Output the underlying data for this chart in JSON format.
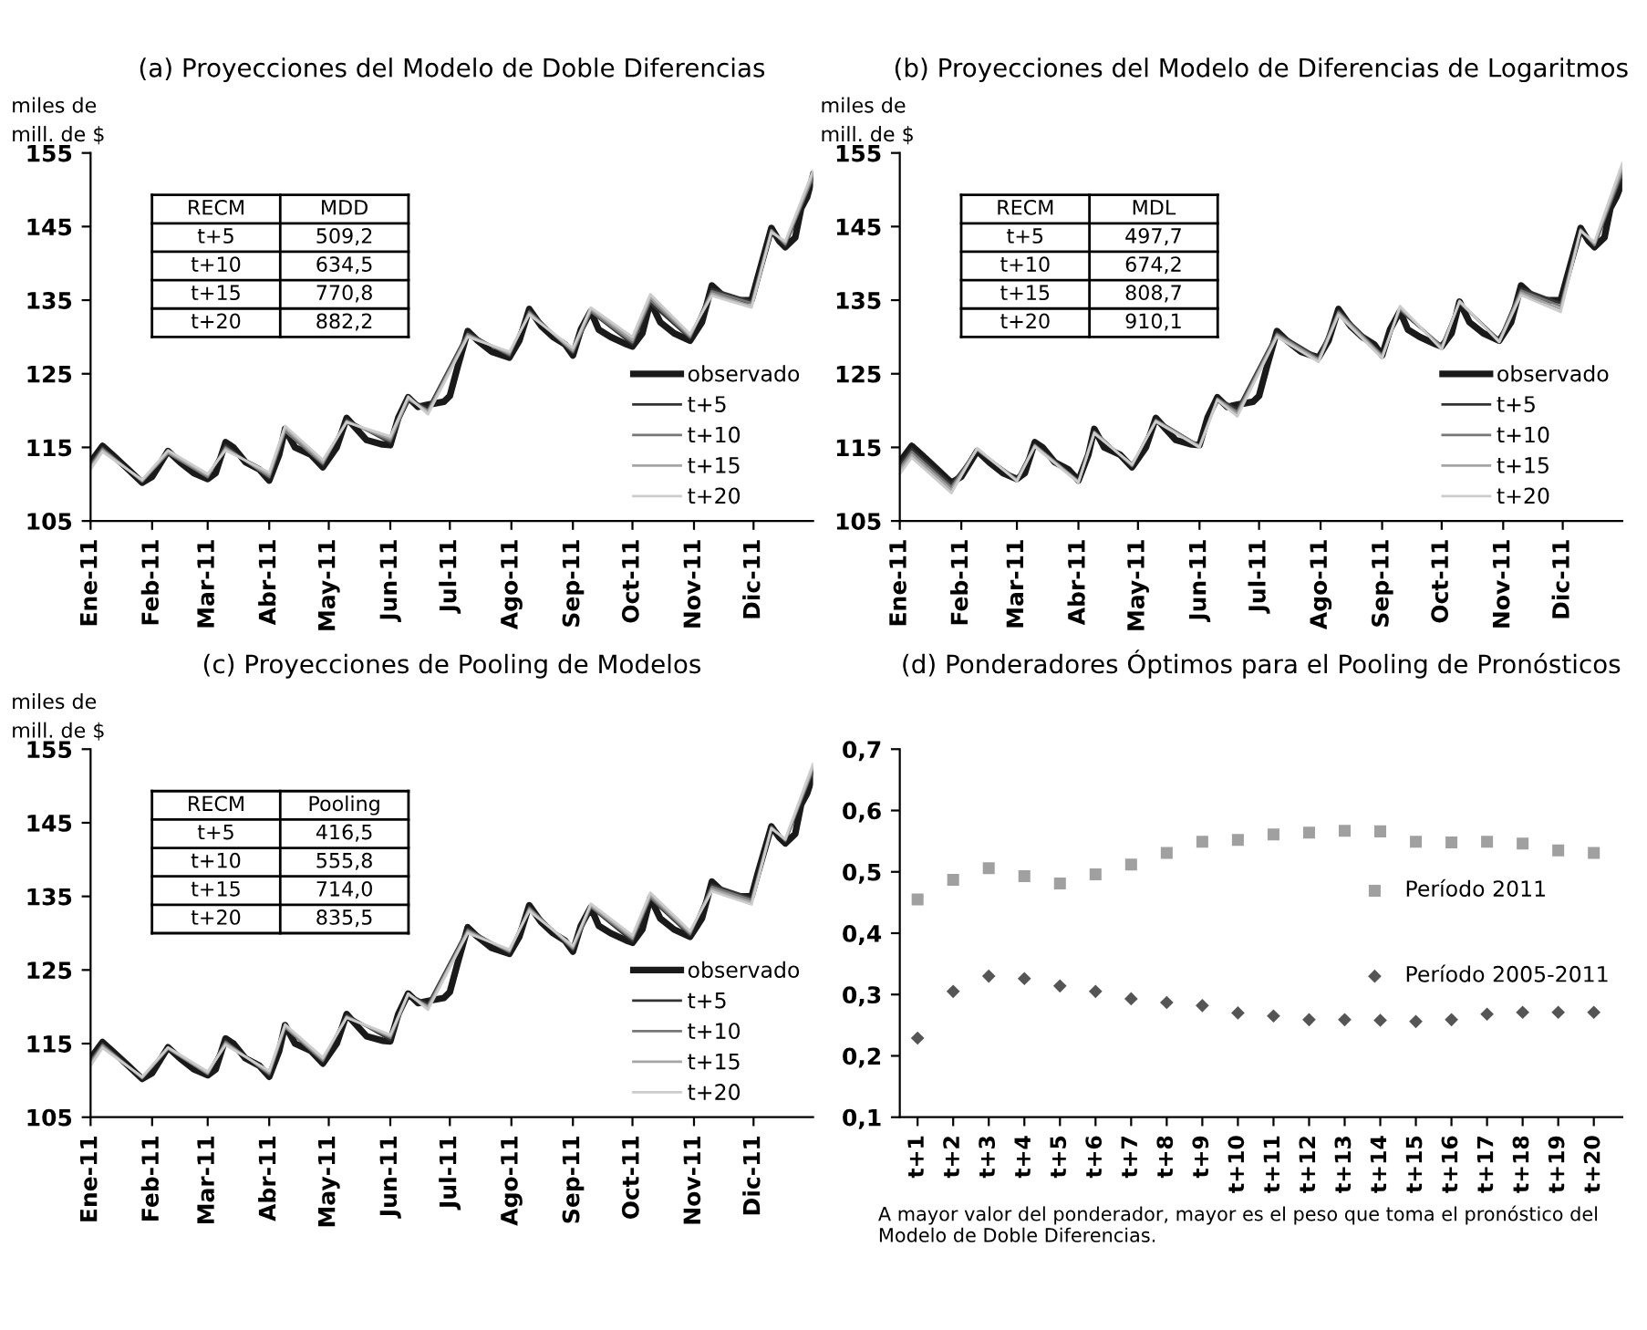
{
  "chart_data": [
    {
      "type": "line",
      "title": "(a) Proyecciones del Modelo de Doble Diferencias",
      "ylabel": "miles de\nmill. de $",
      "legend": "lower right",
      "xlim": [
        "2011-01-01",
        "2011-12-31"
      ],
      "xticks": [
        {
          "value": "2011-01-01",
          "label": "Ene-11"
        },
        {
          "value": "2011-02-01",
          "label": "Feb-11"
        },
        {
          "value": "2011-03-01",
          "label": "Mar-11"
        },
        {
          "value": "2011-04-01",
          "label": "Abr-11"
        },
        {
          "value": "2011-05-01",
          "label": "May-11"
        },
        {
          "value": "2011-06-01",
          "label": "Jun-11"
        },
        {
          "value": "2011-07-01",
          "label": "Jul-11"
        },
        {
          "value": "2011-08-01",
          "label": "Ago-11"
        },
        {
          "value": "2011-09-01",
          "label": "Sep-11"
        },
        {
          "value": "2011-10-01",
          "label": "Oct-11"
        },
        {
          "value": "2011-11-01",
          "label": "Nov-11"
        },
        {
          "value": "2011-12-01",
          "label": "Dic-11"
        }
      ],
      "ylim": [
        105,
        155
      ],
      "yticks": [
        105,
        115,
        125,
        135,
        145,
        155
      ],
      "annotations": [
        "RECM",
        "MDD",
        "t+5",
        "509,2",
        "t+10",
        "634,5",
        "t+15",
        "770,8",
        "t+20",
        "882,2"
      ],
      "series": [
        {
          "name": "observado",
          "color": "#1a1a1a",
          "x": [
            "2011-01-01",
            "2011-01-07",
            "2011-01-12",
            "2011-01-20",
            "2011-01-27",
            "2011-02-01",
            "2011-02-09",
            "2011-02-15",
            "2011-02-22",
            "2011-03-01",
            "2011-03-05",
            "2011-03-10",
            "2011-03-14",
            "2011-03-20",
            "2011-03-27",
            "2011-04-01",
            "2011-04-06",
            "2011-04-09",
            "2011-04-14",
            "2011-04-22",
            "2011-04-28",
            "2011-05-05",
            "2011-05-10",
            "2011-05-15",
            "2011-05-20",
            "2011-05-28",
            "2011-06-01",
            "2011-06-05",
            "2011-06-10",
            "2011-06-15",
            "2011-06-20",
            "2011-06-28",
            "2011-07-01",
            "2011-07-05",
            "2011-07-10",
            "2011-07-15",
            "2011-07-22",
            "2011-07-31",
            "2011-08-05",
            "2011-08-10",
            "2011-08-16",
            "2011-08-22",
            "2011-08-28",
            "2011-09-01",
            "2011-09-05",
            "2011-09-10",
            "2011-09-14",
            "2011-09-20",
            "2011-09-28",
            "2011-10-01",
            "2011-10-06",
            "2011-10-10",
            "2011-10-15",
            "2011-10-22",
            "2011-10-30",
            "2011-11-05",
            "2011-11-10",
            "2011-11-16",
            "2011-11-22",
            "2011-11-30",
            "2011-12-03",
            "2011-12-10",
            "2011-12-14",
            "2011-12-17",
            "2011-12-22",
            "2011-12-25",
            "2011-12-28",
            "2011-12-31"
          ],
          "values": [
            113,
            115.2,
            114,
            112,
            110.2,
            111,
            114.5,
            113,
            111.5,
            110.7,
            111.5,
            115.7,
            115,
            113,
            112,
            110.5,
            114,
            117.5,
            115,
            114,
            112.3,
            115,
            119,
            117.5,
            116,
            115.4,
            115.3,
            119,
            121.8,
            120.5,
            120.8,
            121.2,
            122,
            126,
            130.8,
            129.5,
            128,
            127.2,
            129.5,
            133.8,
            131.5,
            130,
            129,
            127.5,
            131,
            133.5,
            131,
            130,
            129,
            128.7,
            130.5,
            134.8,
            132,
            130.5,
            129.5,
            132,
            137,
            135.5,
            135,
            135,
            138,
            144.8,
            143,
            142.2,
            143.5,
            147.5,
            149,
            152
          ]
        },
        {
          "name": "t+5",
          "color": "#333333",
          "x": [
            "2011-01-01",
            "2011-01-07",
            "2011-01-27",
            "2011-02-09",
            "2011-03-01",
            "2011-03-10",
            "2011-04-01",
            "2011-04-09",
            "2011-04-28",
            "2011-05-10",
            "2011-06-01",
            "2011-06-10",
            "2011-06-20",
            "2011-07-10",
            "2011-07-31",
            "2011-08-10",
            "2011-09-01",
            "2011-09-10",
            "2011-10-01",
            "2011-10-10",
            "2011-10-30",
            "2011-11-10",
            "2011-11-30",
            "2011-12-10",
            "2011-12-17",
            "2011-12-31"
          ],
          "values": [
            112.8,
            115,
            110.3,
            114.3,
            110.9,
            115.3,
            110.8,
            117.3,
            112.6,
            118.8,
            115.6,
            121.6,
            120.3,
            130.6,
            127.4,
            133.6,
            127.8,
            133.4,
            129,
            134.6,
            129.8,
            136.5,
            134.8,
            144.6,
            142.4,
            151.6
          ]
        },
        {
          "name": "t+10",
          "color": "#777777",
          "x": [
            "2011-01-01",
            "2011-01-07",
            "2011-01-27",
            "2011-02-09",
            "2011-03-01",
            "2011-03-10",
            "2011-04-01",
            "2011-04-09",
            "2011-04-28",
            "2011-05-10",
            "2011-06-01",
            "2011-06-10",
            "2011-06-20",
            "2011-07-10",
            "2011-07-31",
            "2011-08-10",
            "2011-09-01",
            "2011-09-10",
            "2011-10-01",
            "2011-10-10",
            "2011-10-30",
            "2011-11-10",
            "2011-11-30",
            "2011-12-10",
            "2011-12-17",
            "2011-12-31"
          ],
          "values": [
            112.5,
            114.8,
            110.4,
            114.2,
            111,
            115,
            111,
            117.2,
            112.8,
            118.6,
            115.9,
            121.5,
            120,
            130.4,
            127.6,
            133.4,
            128,
            133.5,
            129.3,
            135,
            130,
            136.2,
            134.6,
            144.5,
            142.6,
            151.8
          ]
        },
        {
          "name": "t+15",
          "color": "#a5a5a5",
          "x": [
            "2011-01-01",
            "2011-01-07",
            "2011-01-27",
            "2011-02-09",
            "2011-03-01",
            "2011-03-10",
            "2011-04-01",
            "2011-04-09",
            "2011-04-28",
            "2011-05-10",
            "2011-06-01",
            "2011-06-10",
            "2011-06-20",
            "2011-07-10",
            "2011-07-31",
            "2011-08-10",
            "2011-09-01",
            "2011-09-10",
            "2011-10-01",
            "2011-10-10",
            "2011-10-30",
            "2011-11-10",
            "2011-11-30",
            "2011-12-10",
            "2011-12-17",
            "2011-12-31"
          ],
          "values": [
            112.2,
            114.6,
            110.5,
            114.4,
            111.2,
            114.8,
            111.3,
            117.6,
            113,
            118.5,
            116.2,
            121.7,
            119.8,
            130.2,
            127.8,
            133.2,
            128.2,
            133.8,
            129.6,
            135.4,
            130.2,
            135.9,
            134.2,
            144.4,
            142.8,
            152.2
          ]
        },
        {
          "name": "t+20",
          "color": "#cccccc",
          "x": [
            "2011-01-01",
            "2011-01-07",
            "2011-01-27",
            "2011-02-09",
            "2011-03-01",
            "2011-03-10",
            "2011-04-01",
            "2011-04-09",
            "2011-04-28",
            "2011-05-10",
            "2011-06-01",
            "2011-06-10",
            "2011-06-20",
            "2011-07-10",
            "2011-07-31",
            "2011-08-10",
            "2011-09-01",
            "2011-09-10",
            "2011-10-01",
            "2011-10-10",
            "2011-10-30",
            "2011-11-10",
            "2011-11-30",
            "2011-12-10",
            "2011-12-17",
            "2011-12-31"
          ],
          "values": [
            112,
            114.4,
            110.6,
            114.6,
            111.4,
            114.6,
            111.6,
            117.9,
            113.3,
            118.4,
            116.5,
            121.9,
            119.5,
            130,
            128,
            133,
            128.5,
            134,
            130,
            135.8,
            130.4,
            135.6,
            134,
            144.2,
            143,
            152.6
          ]
        }
      ]
    },
    {
      "type": "line",
      "title": "(b) Proyecciones del Modelo de Diferencias de Logaritmos",
      "ylabel": "miles de\nmill. de $",
      "legend": "lower right",
      "xlim": [
        "2011-01-01",
        "2011-12-31"
      ],
      "xticks": [
        {
          "value": "2011-01-01",
          "label": "Ene-11"
        },
        {
          "value": "2011-02-01",
          "label": "Feb-11"
        },
        {
          "value": "2011-03-01",
          "label": "Mar-11"
        },
        {
          "value": "2011-04-01",
          "label": "Abr-11"
        },
        {
          "value": "2011-05-01",
          "label": "May-11"
        },
        {
          "value": "2011-06-01",
          "label": "Jun-11"
        },
        {
          "value": "2011-07-01",
          "label": "Jul-11"
        },
        {
          "value": "2011-08-01",
          "label": "Ago-11"
        },
        {
          "value": "2011-09-01",
          "label": "Sep-11"
        },
        {
          "value": "2011-10-01",
          "label": "Oct-11"
        },
        {
          "value": "2011-11-01",
          "label": "Nov-11"
        },
        {
          "value": "2011-12-01",
          "label": "Dic-11"
        }
      ],
      "ylim": [
        105,
        155
      ],
      "yticks": [
        105,
        115,
        125,
        135,
        145,
        155
      ],
      "annotations": [
        "RECM",
        "MDL",
        "t+5",
        "497,7",
        "t+10",
        "674,2",
        "t+15",
        "808,7",
        "t+20",
        "910,1"
      ],
      "series": [
        {
          "name": "observado",
          "color": "#1a1a1a",
          "x": [
            "2011-01-01",
            "2011-01-07",
            "2011-01-12",
            "2011-01-20",
            "2011-01-27",
            "2011-02-01",
            "2011-02-09",
            "2011-02-15",
            "2011-02-22",
            "2011-03-01",
            "2011-03-05",
            "2011-03-10",
            "2011-03-14",
            "2011-03-20",
            "2011-03-27",
            "2011-04-01",
            "2011-04-06",
            "2011-04-09",
            "2011-04-14",
            "2011-04-22",
            "2011-04-28",
            "2011-05-05",
            "2011-05-10",
            "2011-05-15",
            "2011-05-20",
            "2011-05-28",
            "2011-06-01",
            "2011-06-05",
            "2011-06-10",
            "2011-06-15",
            "2011-06-20",
            "2011-06-28",
            "2011-07-01",
            "2011-07-05",
            "2011-07-10",
            "2011-07-15",
            "2011-07-22",
            "2011-07-31",
            "2011-08-05",
            "2011-08-10",
            "2011-08-16",
            "2011-08-22",
            "2011-08-28",
            "2011-09-01",
            "2011-09-05",
            "2011-09-10",
            "2011-09-14",
            "2011-09-20",
            "2011-09-28",
            "2011-10-01",
            "2011-10-06",
            "2011-10-10",
            "2011-10-15",
            "2011-10-22",
            "2011-10-30",
            "2011-11-05",
            "2011-11-10",
            "2011-11-16",
            "2011-11-22",
            "2011-11-30",
            "2011-12-03",
            "2011-12-10",
            "2011-12-14",
            "2011-12-17",
            "2011-12-22",
            "2011-12-25",
            "2011-12-28",
            "2011-12-31"
          ],
          "values": [
            113,
            115.2,
            114,
            112,
            110.2,
            111,
            114.5,
            113,
            111.5,
            110.7,
            111.5,
            115.7,
            115,
            113,
            112,
            110.5,
            114,
            117.5,
            115,
            114,
            112.3,
            115,
            119,
            117.5,
            116,
            115.4,
            115.3,
            119,
            121.8,
            120.5,
            120.8,
            121.2,
            122,
            126,
            130.8,
            129.5,
            128,
            127.2,
            129.5,
            133.8,
            131.5,
            130,
            129,
            127.5,
            131,
            133.5,
            131,
            130,
            129,
            128.7,
            130.5,
            134.8,
            132,
            130.5,
            129.5,
            132,
            137,
            135.5,
            135,
            135,
            138,
            144.8,
            143,
            142.2,
            143.5,
            147.5,
            149,
            151
          ]
        },
        {
          "name": "t+5",
          "color": "#333333",
          "x": [
            "2011-01-01",
            "2011-01-07",
            "2011-01-27",
            "2011-02-09",
            "2011-03-01",
            "2011-03-10",
            "2011-04-01",
            "2011-04-09",
            "2011-04-28",
            "2011-05-10",
            "2011-06-01",
            "2011-06-10",
            "2011-06-20",
            "2011-07-10",
            "2011-07-31",
            "2011-08-10",
            "2011-09-01",
            "2011-09-10",
            "2011-10-01",
            "2011-10-10",
            "2011-10-30",
            "2011-11-10",
            "2011-11-30",
            "2011-12-10",
            "2011-12-17",
            "2011-12-31"
          ],
          "values": [
            112.6,
            114.8,
            110,
            114.6,
            110.7,
            115.4,
            110.5,
            117.2,
            112.4,
            118.8,
            115.2,
            121.7,
            120.2,
            130.6,
            127.2,
            133.6,
            127.6,
            133.6,
            128.8,
            134.7,
            129.6,
            136.6,
            134.6,
            144.7,
            142.4,
            152
          ]
        },
        {
          "name": "t+10",
          "color": "#777777",
          "x": [
            "2011-01-01",
            "2011-01-07",
            "2011-01-27",
            "2011-02-09",
            "2011-03-01",
            "2011-03-10",
            "2011-04-01",
            "2011-04-09",
            "2011-04-28",
            "2011-05-10",
            "2011-06-01",
            "2011-06-10",
            "2011-06-20",
            "2011-07-10",
            "2011-07-31",
            "2011-08-10",
            "2011-09-01",
            "2011-09-10",
            "2011-10-01",
            "2011-10-10",
            "2011-10-30",
            "2011-11-10",
            "2011-11-30",
            "2011-12-10",
            "2011-12-17",
            "2011-12-31"
          ],
          "values": [
            112.2,
            114.4,
            109.6,
            114.7,
            110.6,
            115.3,
            110.4,
            117.1,
            112.5,
            118.7,
            115.2,
            121.6,
            119.8,
            130.4,
            127,
            133.4,
            127.5,
            133.8,
            128.7,
            134.7,
            129.5,
            136.3,
            134.2,
            144.6,
            142.5,
            152.5
          ]
        },
        {
          "name": "t+15",
          "color": "#a5a5a5",
          "x": [
            "2011-01-01",
            "2011-01-07",
            "2011-01-27",
            "2011-02-09",
            "2011-03-01",
            "2011-03-10",
            "2011-04-01",
            "2011-04-09",
            "2011-04-28",
            "2011-05-10",
            "2011-06-01",
            "2011-06-10",
            "2011-06-20",
            "2011-07-10",
            "2011-07-31",
            "2011-08-10",
            "2011-09-01",
            "2011-09-10",
            "2011-10-01",
            "2011-10-10",
            "2011-10-30",
            "2011-11-10",
            "2011-11-30",
            "2011-12-10",
            "2011-12-17",
            "2011-12-31"
          ],
          "values": [
            111.8,
            114,
            109.2,
            114.8,
            110.5,
            115.2,
            110.3,
            117,
            112.6,
            118.6,
            115.1,
            121.5,
            119.5,
            130.2,
            126.8,
            133.2,
            127.3,
            134,
            128.5,
            134.8,
            129.4,
            136,
            133.8,
            144.5,
            142.7,
            153
          ]
        },
        {
          "name": "t+20",
          "color": "#cccccc",
          "x": [
            "2011-01-01",
            "2011-01-07",
            "2011-01-27",
            "2011-02-09",
            "2011-03-01",
            "2011-03-10",
            "2011-04-01",
            "2011-04-09",
            "2011-04-28",
            "2011-05-10",
            "2011-06-01",
            "2011-06-10",
            "2011-06-20",
            "2011-07-10",
            "2011-07-31",
            "2011-08-10",
            "2011-09-01",
            "2011-09-10",
            "2011-10-01",
            "2011-10-10",
            "2011-10-30",
            "2011-11-10",
            "2011-11-30",
            "2011-12-10",
            "2011-12-17",
            "2011-12-31"
          ],
          "values": [
            111.4,
            113.6,
            108.8,
            114.9,
            110.4,
            115.1,
            110.2,
            116.9,
            112.7,
            118.5,
            115,
            121.4,
            119.2,
            130,
            126.6,
            133,
            127.1,
            134.2,
            128.3,
            134.9,
            129.3,
            135.7,
            133.4,
            144.4,
            142.9,
            153.6
          ]
        }
      ]
    },
    {
      "type": "line",
      "title": "(c) Proyecciones de Pooling de Modelos",
      "ylabel": "miles de\nmill. de $",
      "legend": "lower right",
      "xlim": [
        "2011-01-01",
        "2011-12-31"
      ],
      "xticks": [
        {
          "value": "2011-01-01",
          "label": "Ene-11"
        },
        {
          "value": "2011-02-01",
          "label": "Feb-11"
        },
        {
          "value": "2011-03-01",
          "label": "Mar-11"
        },
        {
          "value": "2011-04-01",
          "label": "Abr-11"
        },
        {
          "value": "2011-05-01",
          "label": "May-11"
        },
        {
          "value": "2011-06-01",
          "label": "Jun-11"
        },
        {
          "value": "2011-07-01",
          "label": "Jul-11"
        },
        {
          "value": "2011-08-01",
          "label": "Ago-11"
        },
        {
          "value": "2011-09-01",
          "label": "Sep-11"
        },
        {
          "value": "2011-10-01",
          "label": "Oct-11"
        },
        {
          "value": "2011-11-01",
          "label": "Nov-11"
        },
        {
          "value": "2011-12-01",
          "label": "Dic-11"
        }
      ],
      "ylim": [
        105,
        155
      ],
      "yticks": [
        105,
        115,
        125,
        135,
        145,
        155
      ],
      "annotations": [
        "RECM",
        "Pooling",
        "t+5",
        "416,5",
        "t+10",
        "555,8",
        "t+15",
        "714,0",
        "t+20",
        "835,5"
      ],
      "series": [
        {
          "name": "observado",
          "color": "#1a1a1a",
          "x": [
            "2011-01-01",
            "2011-01-07",
            "2011-01-12",
            "2011-01-20",
            "2011-01-27",
            "2011-02-01",
            "2011-02-09",
            "2011-02-15",
            "2011-02-22",
            "2011-03-01",
            "2011-03-05",
            "2011-03-10",
            "2011-03-14",
            "2011-03-20",
            "2011-03-27",
            "2011-04-01",
            "2011-04-06",
            "2011-04-09",
            "2011-04-14",
            "2011-04-22",
            "2011-04-28",
            "2011-05-05",
            "2011-05-10",
            "2011-05-15",
            "2011-05-20",
            "2011-05-28",
            "2011-06-01",
            "2011-06-05",
            "2011-06-10",
            "2011-06-15",
            "2011-06-20",
            "2011-06-28",
            "2011-07-01",
            "2011-07-05",
            "2011-07-10",
            "2011-07-15",
            "2011-07-22",
            "2011-07-31",
            "2011-08-05",
            "2011-08-10",
            "2011-08-16",
            "2011-08-22",
            "2011-08-28",
            "2011-09-01",
            "2011-09-05",
            "2011-09-10",
            "2011-09-14",
            "2011-09-20",
            "2011-09-28",
            "2011-10-01",
            "2011-10-06",
            "2011-10-10",
            "2011-10-15",
            "2011-10-22",
            "2011-10-30",
            "2011-11-05",
            "2011-11-10",
            "2011-11-16",
            "2011-11-22",
            "2011-11-30",
            "2011-12-03",
            "2011-12-10",
            "2011-12-14",
            "2011-12-17",
            "2011-12-22",
            "2011-12-25",
            "2011-12-28",
            "2011-12-31"
          ],
          "values": [
            113,
            115.2,
            114,
            112,
            110.2,
            111,
            114.5,
            113,
            111.5,
            110.7,
            111.5,
            115.7,
            115,
            113,
            112,
            110.5,
            114,
            117.5,
            115,
            114,
            112.3,
            115,
            119,
            117.5,
            116,
            115.4,
            115.3,
            119,
            121.8,
            120.5,
            120.8,
            121.2,
            122,
            126,
            130.8,
            129.5,
            128,
            127.2,
            129.5,
            133.8,
            131.5,
            130,
            129,
            127.5,
            131,
            133.5,
            131,
            130,
            129,
            128.7,
            130.5,
            134.8,
            132,
            130.5,
            129.5,
            132,
            137,
            135.5,
            135,
            135,
            138,
            144.5,
            143,
            142.2,
            143.5,
            147.5,
            149,
            151.5
          ]
        },
        {
          "name": "t+5",
          "color": "#333333",
          "x": [
            "2011-01-01",
            "2011-01-07",
            "2011-01-27",
            "2011-02-09",
            "2011-03-01",
            "2011-03-10",
            "2011-04-01",
            "2011-04-09",
            "2011-04-28",
            "2011-05-10",
            "2011-06-01",
            "2011-06-10",
            "2011-06-20",
            "2011-07-10",
            "2011-07-31",
            "2011-08-10",
            "2011-09-01",
            "2011-09-10",
            "2011-10-01",
            "2011-10-10",
            "2011-10-30",
            "2011-11-10",
            "2011-11-30",
            "2011-12-10",
            "2011-12-17",
            "2011-12-31"
          ],
          "values": [
            112.8,
            115,
            110.3,
            114.4,
            110.8,
            115.4,
            110.7,
            117.3,
            112.5,
            118.9,
            115.5,
            121.7,
            120.4,
            130.6,
            127.3,
            133.6,
            127.7,
            133.5,
            128.9,
            134.7,
            129.7,
            136.6,
            134.8,
            144.5,
            142.5,
            152
          ]
        },
        {
          "name": "t+10",
          "color": "#777777",
          "x": [
            "2011-01-01",
            "2011-01-07",
            "2011-01-27",
            "2011-02-09",
            "2011-03-01",
            "2011-03-10",
            "2011-04-01",
            "2011-04-09",
            "2011-04-28",
            "2011-05-10",
            "2011-06-01",
            "2011-06-10",
            "2011-06-20",
            "2011-07-10",
            "2011-07-31",
            "2011-08-10",
            "2011-09-01",
            "2011-09-10",
            "2011-10-01",
            "2011-10-10",
            "2011-10-30",
            "2011-11-10",
            "2011-11-30",
            "2011-12-10",
            "2011-12-17",
            "2011-12-31"
          ],
          "values": [
            112.5,
            114.8,
            110.3,
            114.3,
            110.9,
            115.2,
            110.9,
            117.2,
            112.7,
            118.7,
            115.8,
            121.6,
            120.1,
            130.4,
            127.5,
            133.4,
            127.9,
            133.6,
            129.2,
            134.9,
            129.9,
            136.3,
            134.5,
            144.4,
            142.6,
            152.3
          ]
        },
        {
          "name": "t+15",
          "color": "#a5a5a5",
          "x": [
            "2011-01-01",
            "2011-01-07",
            "2011-01-27",
            "2011-02-09",
            "2011-03-01",
            "2011-03-10",
            "2011-04-01",
            "2011-04-09",
            "2011-04-28",
            "2011-05-10",
            "2011-06-01",
            "2011-06-10",
            "2011-06-20",
            "2011-07-10",
            "2011-07-31",
            "2011-08-10",
            "2011-09-01",
            "2011-09-10",
            "2011-10-01",
            "2011-10-10",
            "2011-10-30",
            "2011-11-10",
            "2011-11-30",
            "2011-12-10",
            "2011-12-17",
            "2011-12-31"
          ],
          "values": [
            112.2,
            114.6,
            110.4,
            114.4,
            111,
            115,
            111.1,
            117.4,
            112.9,
            118.6,
            116,
            121.7,
            119.9,
            130.2,
            127.6,
            133.2,
            128.1,
            133.8,
            129.4,
            135.2,
            130.1,
            136,
            134.2,
            144.3,
            142.7,
            152.6
          ]
        },
        {
          "name": "t+20",
          "color": "#cccccc",
          "x": [
            "2011-01-01",
            "2011-01-07",
            "2011-01-27",
            "2011-02-09",
            "2011-03-01",
            "2011-03-10",
            "2011-04-01",
            "2011-04-09",
            "2011-04-28",
            "2011-05-10",
            "2011-06-01",
            "2011-06-10",
            "2011-06-20",
            "2011-07-10",
            "2011-07-31",
            "2011-08-10",
            "2011-09-01",
            "2011-09-10",
            "2011-10-01",
            "2011-10-10",
            "2011-10-30",
            "2011-11-10",
            "2011-11-30",
            "2011-12-10",
            "2011-12-17",
            "2011-12-31"
          ],
          "values": [
            112,
            114.4,
            110.5,
            114.5,
            111.2,
            114.8,
            111.3,
            117.6,
            113.1,
            118.5,
            116.2,
            121.8,
            119.6,
            130,
            127.8,
            133,
            128.3,
            134,
            129.7,
            135.5,
            130.3,
            135.7,
            133.9,
            144.2,
            142.8,
            153
          ]
        }
      ]
    },
    {
      "type": "scatter",
      "title": "(d) Ponderadores Óptimos para el Pooling de Pronósticos",
      "legend": "center right",
      "categories": [
        "t+1",
        "t+2",
        "t+3",
        "t+4",
        "t+5",
        "t+6",
        "t+7",
        "t+8",
        "t+9",
        "t+10",
        "t+11",
        "t+12",
        "t+13",
        "t+14",
        "t+15",
        "t+16",
        "t+17",
        "t+18",
        "t+19",
        "t+20"
      ],
      "ylim": [
        0.1,
        0.7
      ],
      "yticks": [
        {
          "value": 0.1,
          "label": "0,1"
        },
        {
          "value": 0.2,
          "label": "0,2"
        },
        {
          "value": 0.3,
          "label": "0,3"
        },
        {
          "value": 0.4,
          "label": "0,4"
        },
        {
          "value": 0.5,
          "label": "0,5"
        },
        {
          "value": 0.6,
          "label": "0,6"
        },
        {
          "value": 0.7,
          "label": "0,7"
        }
      ],
      "annotations": [
        "A mayor valor del ponderador, mayor es el peso que toma el pronóstico del Modelo de Doble Diferencias."
      ],
      "series": [
        {
          "name": "Período 2011",
          "color": "#a0a0a0",
          "marker": "square",
          "values": [
            0.455,
            0.487,
            0.506,
            0.493,
            0.481,
            0.496,
            0.512,
            0.531,
            0.549,
            0.552,
            0.561,
            0.564,
            0.567,
            0.566,
            0.549,
            0.548,
            0.549,
            0.546,
            0.535,
            0.531
          ]
        },
        {
          "name": "Período 2005-2011",
          "color": "#555555",
          "marker": "diamond",
          "values": [
            0.229,
            0.305,
            0.33,
            0.326,
            0.314,
            0.305,
            0.293,
            0.287,
            0.282,
            0.27,
            0.265,
            0.259,
            0.259,
            0.258,
            0.256,
            0.259,
            0.268,
            0.271,
            0.271,
            0.271
          ]
        }
      ]
    }
  ]
}
